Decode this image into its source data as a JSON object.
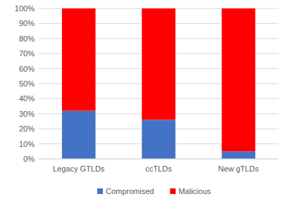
{
  "chart_data": {
    "type": "bar",
    "stacked": true,
    "grid": true,
    "legend": "bottom",
    "categories": [
      "Legacy GTLDs",
      "ccTLDs",
      "New gTLDs"
    ],
    "series": [
      {
        "name": "Compromised",
        "color": "#4472c4",
        "values": [
          32,
          26,
          5
        ]
      },
      {
        "name": "Malicious",
        "color": "#ff0000",
        "values": [
          68,
          74,
          95
        ]
      }
    ],
    "ylim": [
      0,
      100
    ],
    "yticks": [
      {
        "value": 0,
        "label": "0%"
      },
      {
        "value": 10,
        "label": "10%"
      },
      {
        "value": 20,
        "label": "20%"
      },
      {
        "value": 30,
        "label": "30%"
      },
      {
        "value": 40,
        "label": "40%"
      },
      {
        "value": 50,
        "label": "50%"
      },
      {
        "value": 60,
        "label": "60%"
      },
      {
        "value": 70,
        "label": "70%"
      },
      {
        "value": 80,
        "label": "80%"
      },
      {
        "value": 90,
        "label": "90%"
      },
      {
        "value": 100,
        "label": "100%"
      }
    ]
  }
}
